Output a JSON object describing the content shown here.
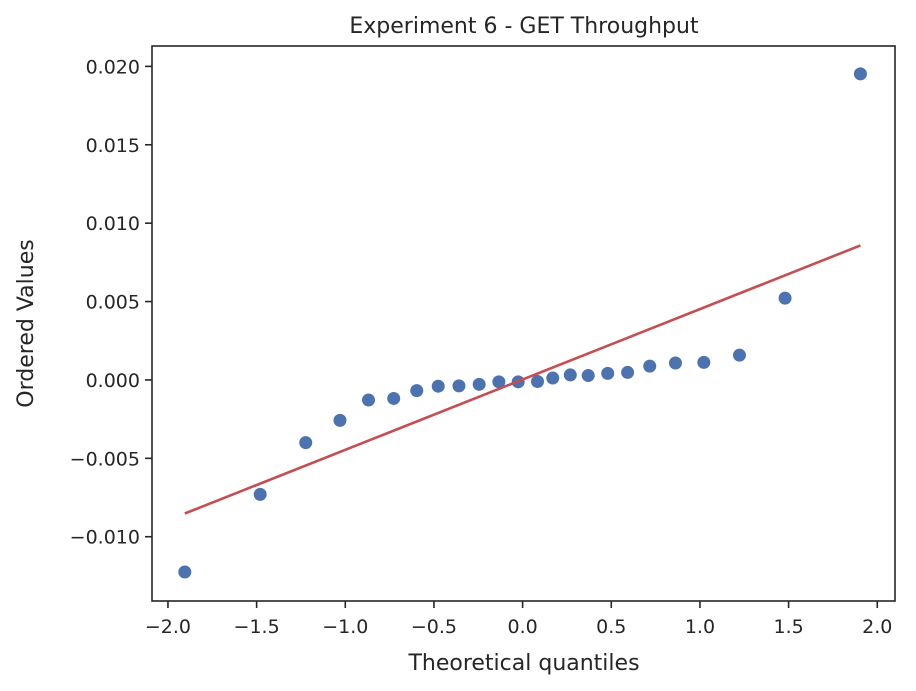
{
  "chart_data": {
    "type": "scatter",
    "title": "Experiment 6 - GET Throughput",
    "xlabel": "Theoretical quantiles",
    "ylabel": "Ordered Values",
    "xlim": [
      -2.09,
      2.1
    ],
    "ylim": [
      -0.0141,
      0.0213
    ],
    "grid": false,
    "x_ticks": [
      -2.0,
      -1.5,
      -1.0,
      -0.5,
      0.0,
      0.5,
      1.0,
      1.5,
      2.0
    ],
    "x_tick_labels": [
      "−2.0",
      "−1.5",
      "−1.0",
      "−0.5",
      "0.0",
      "0.5",
      "1.0",
      "1.5",
      "2.0"
    ],
    "y_ticks": [
      -0.01,
      -0.005,
      0.0,
      0.005,
      0.01,
      0.015,
      0.02
    ],
    "y_tick_labels": [
      "−0.010",
      "−0.005",
      "0.000",
      "0.005",
      "0.010",
      "0.015",
      "0.020"
    ],
    "series": [
      {
        "kind": "points",
        "color": "#4c72b0",
        "x": [
          -1.905,
          -1.48,
          -1.223,
          -1.03,
          -0.869,
          -0.727,
          -0.597,
          -0.476,
          -0.359,
          -0.245,
          -0.134,
          -0.025,
          0.084,
          0.17,
          0.269,
          0.37,
          0.48,
          0.592,
          0.717,
          0.862,
          1.022,
          1.223,
          1.48,
          1.905
        ],
        "y": [
          -0.01225,
          -0.0073,
          -0.004,
          -0.00258,
          -0.00128,
          -0.00118,
          -0.00068,
          -0.0004,
          -0.00038,
          -0.00028,
          -0.00012,
          -0.00012,
          -0.0001,
          0.00012,
          0.00032,
          0.00028,
          0.00042,
          0.00048,
          0.00088,
          0.00108,
          0.00112,
          0.00158,
          0.00522,
          0.01952
        ]
      },
      {
        "kind": "fit-line",
        "color": "#c44e52",
        "x": [
          -1.905,
          1.905
        ],
        "y": [
          -0.00852,
          0.00858
        ]
      }
    ]
  }
}
